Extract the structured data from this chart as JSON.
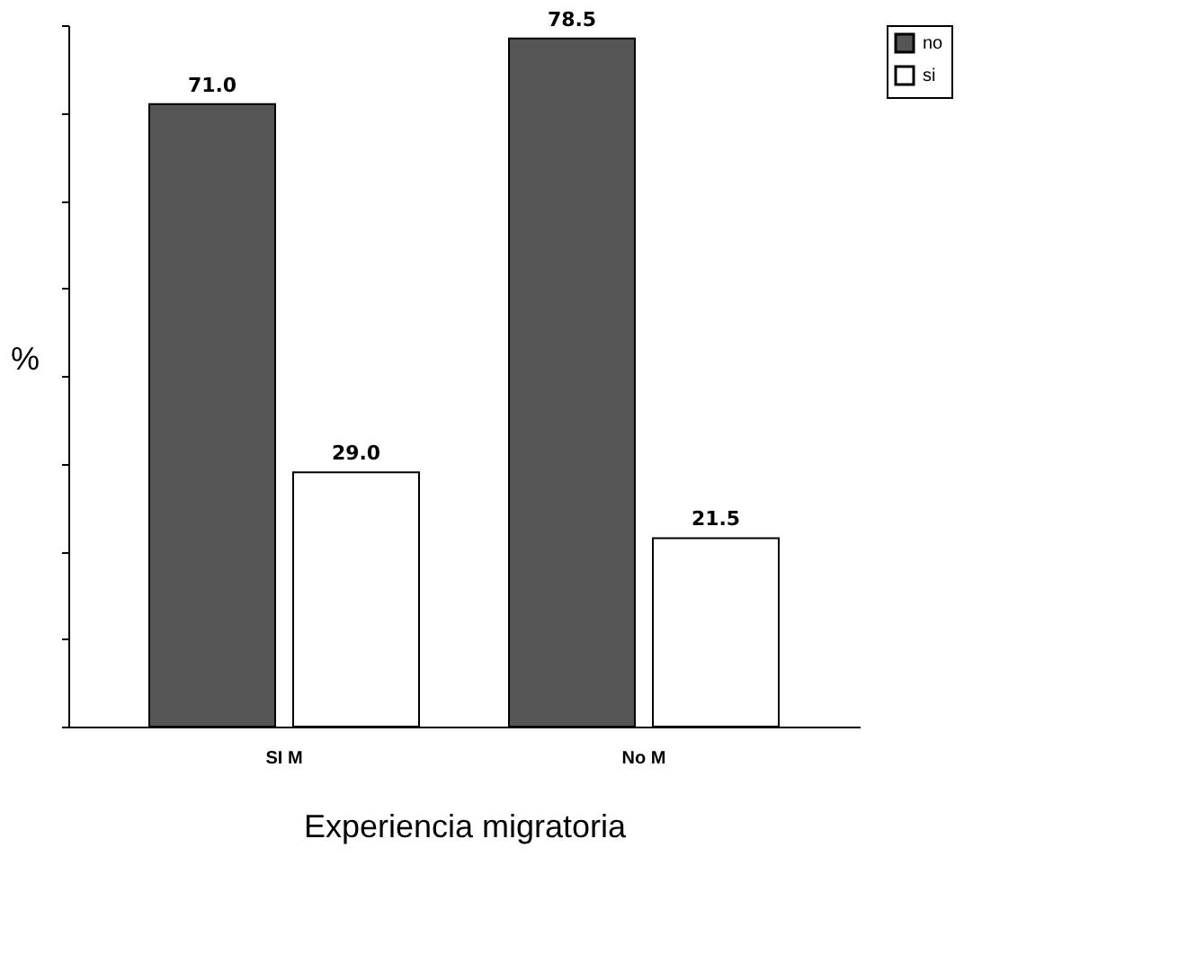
{
  "chart_data": {
    "type": "bar",
    "xlabel": "Experiencia migratoria",
    "ylabel": "%",
    "categories": [
      "SI M",
      "No M"
    ],
    "series": [
      {
        "name": "no",
        "color": "#555555",
        "values": [
          71.0,
          78.5
        ],
        "value_labels": [
          "71.0",
          "78.5"
        ]
      },
      {
        "name": "si",
        "color": "#ffffff",
        "values": [
          29.0,
          21.5
        ],
        "value_labels": [
          "29.0",
          "21.5"
        ]
      }
    ],
    "tick_labels": "x",
    "grid": false,
    "legend": "right"
  }
}
